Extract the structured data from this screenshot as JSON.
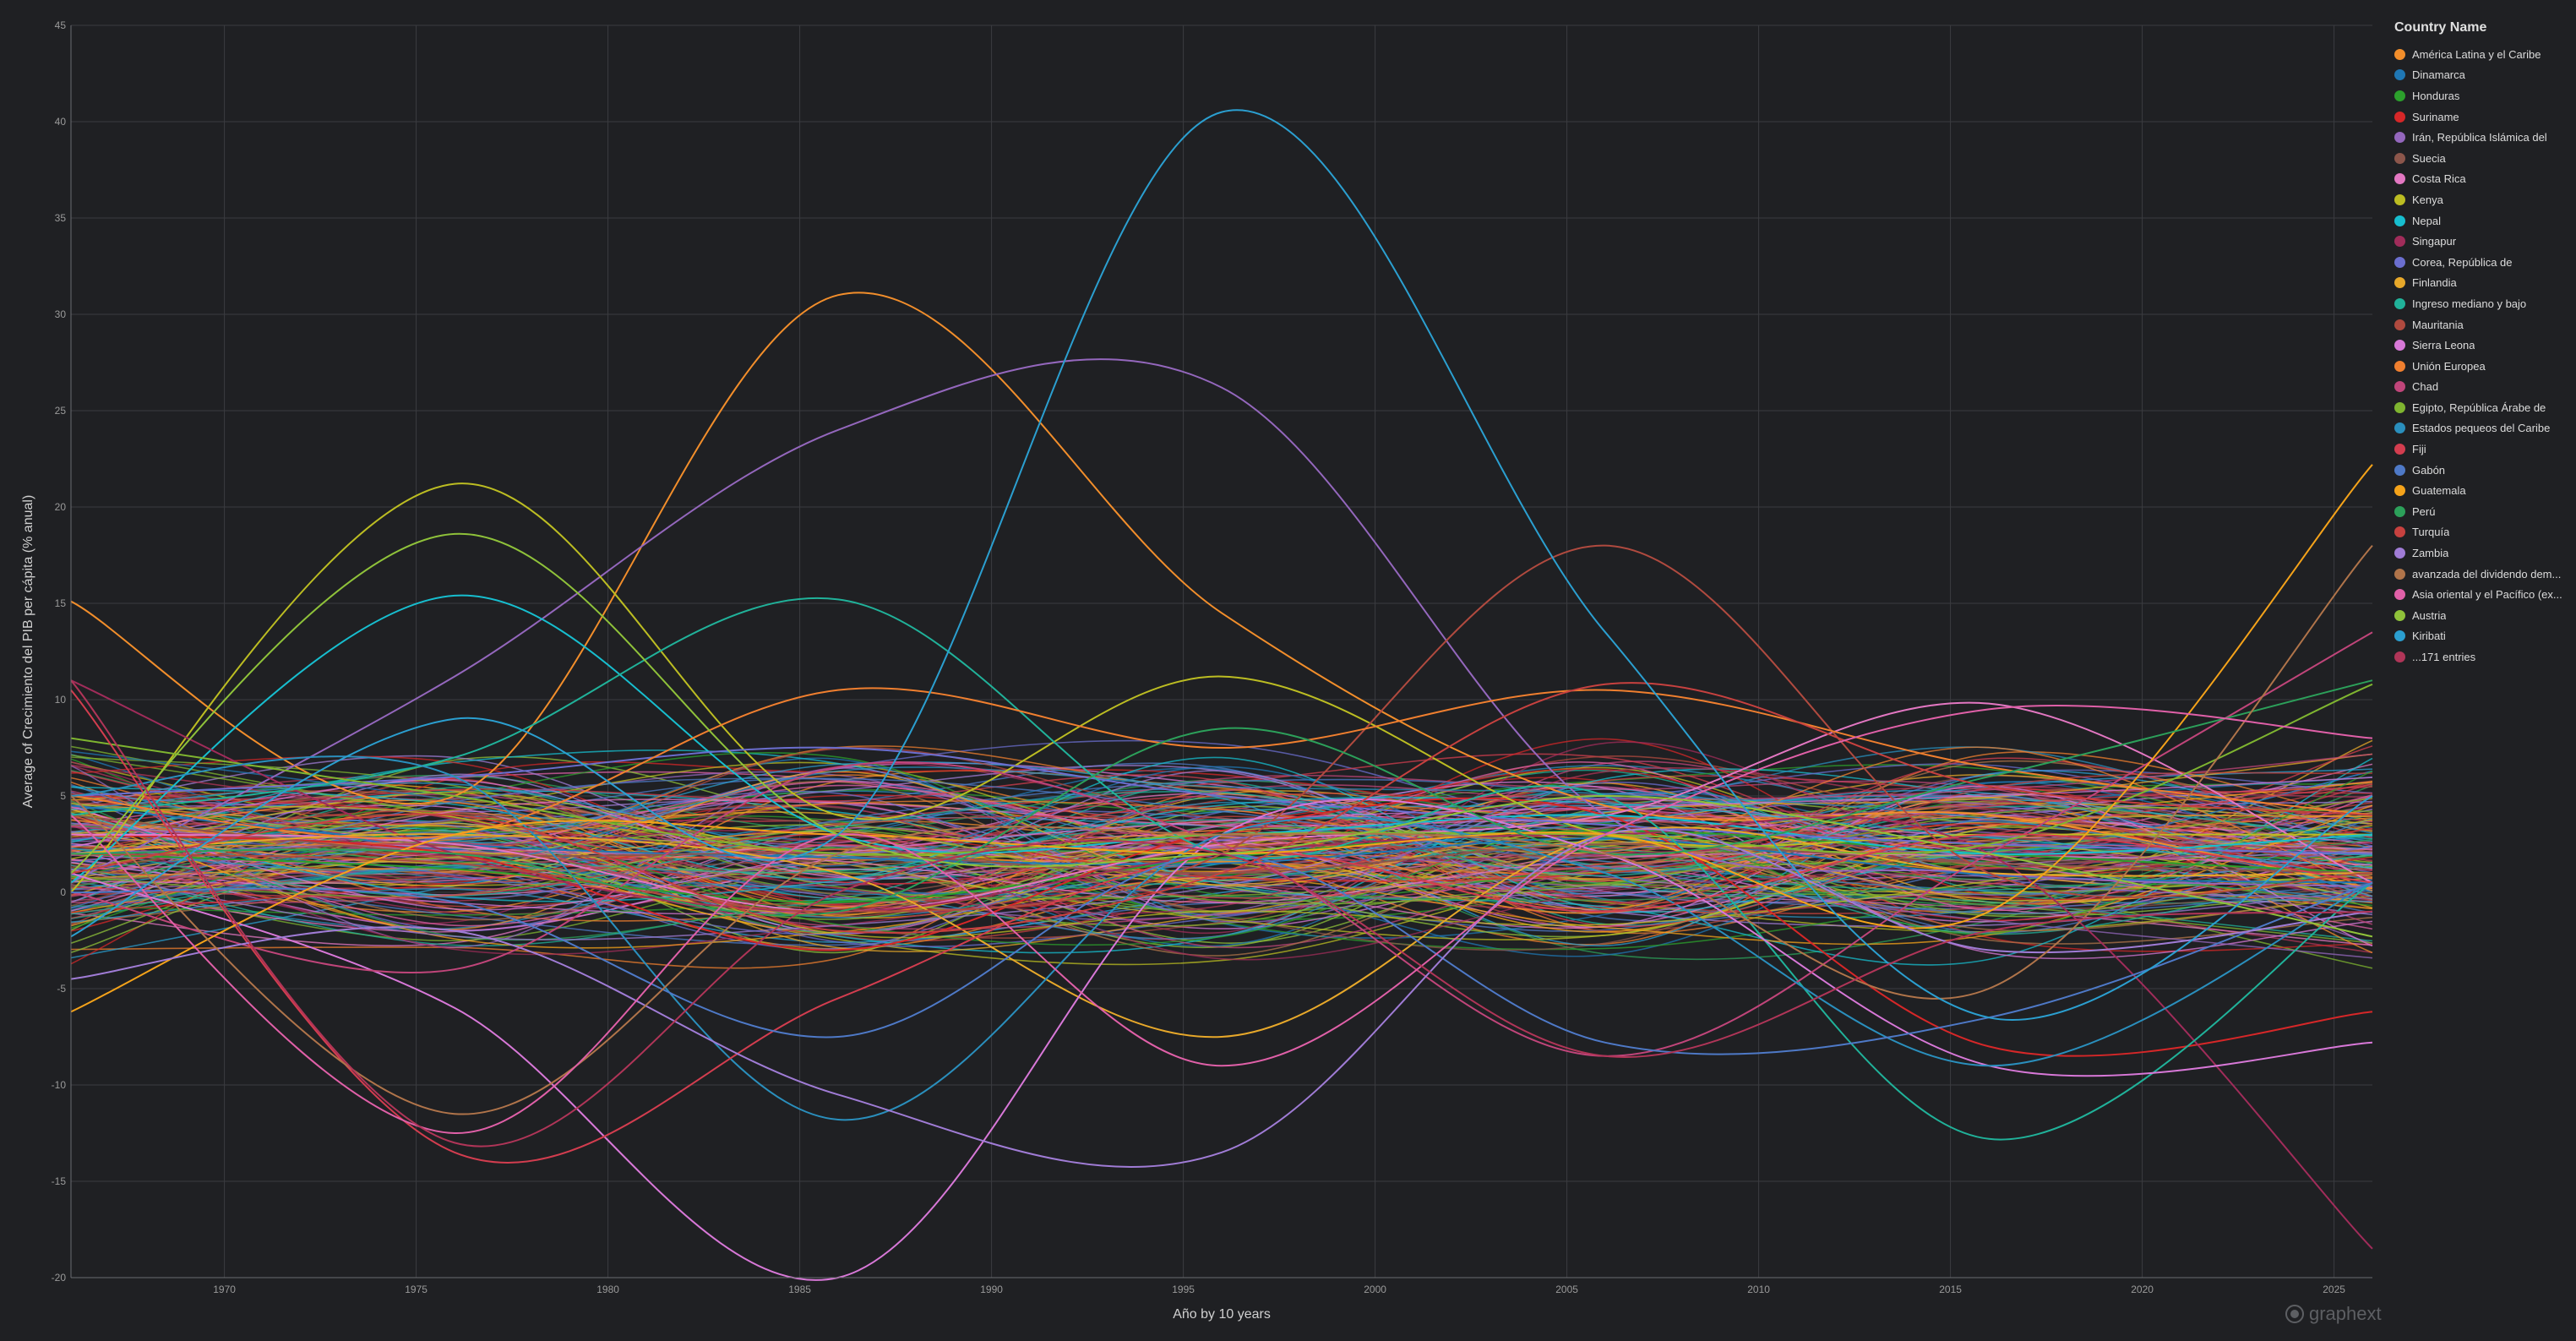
{
  "chart_data": {
    "type": "line",
    "title": "",
    "xlabel": "Año by 10 years",
    "ylabel": "Average of Crecimiento del PIB per cápita (% anual)",
    "xlim": [
      1966,
      2026
    ],
    "ylim": [
      -20,
      45
    ],
    "x_ticks": [
      1970,
      1975,
      1980,
      1985,
      1990,
      1995,
      2000,
      2005,
      2010,
      2015,
      2020,
      2025
    ],
    "y_ticks": [
      -20,
      -15,
      -10,
      -5,
      0,
      5,
      10,
      15,
      20,
      25,
      30,
      35,
      40,
      45
    ],
    "grid": true,
    "legend_position": "right",
    "x": [
      1966,
      1976,
      1986,
      1996,
      2006,
      2016,
      2026
    ],
    "series": [
      {
        "name": "América Latina y el Caribe",
        "color": "#f28e2b",
        "values": [
          15.1,
          5.0,
          31.0,
          14.5,
          4.5,
          4.0,
          0.2
        ]
      },
      {
        "name": "Dinamarca",
        "color": "#1f77b4",
        "values": [
          4.5,
          2.5,
          1.8,
          1.5,
          2.8,
          0.9,
          0.5
        ]
      },
      {
        "name": "Honduras",
        "color": "#2ca02c",
        "values": [
          2.0,
          1.2,
          -0.5,
          1.8,
          3.2,
          2.0,
          1.0
        ]
      },
      {
        "name": "Suriname",
        "color": "#d62728",
        "values": [
          3.0,
          2.0,
          -3.0,
          3.2,
          4.0,
          -8.0,
          -6.2
        ]
      },
      {
        "name": "Irán, República Islámica del",
        "color": "#9467bd",
        "values": [
          0.5,
          11.2,
          24.0,
          26.2,
          4.0,
          1.0,
          0.3
        ]
      },
      {
        "name": "Suecia",
        "color": "#8c564b",
        "values": [
          4.0,
          2.0,
          2.0,
          1.0,
          2.5,
          1.5,
          1.0
        ]
      },
      {
        "name": "Costa Rica",
        "color": "#e377c2",
        "values": [
          3.0,
          2.5,
          -1.0,
          2.5,
          4.0,
          9.8,
          0.5
        ]
      },
      {
        "name": "Kenya",
        "color": "#bcbd22",
        "values": [
          0.0,
          21.2,
          4.0,
          11.2,
          3.0,
          3.0,
          3.0
        ]
      },
      {
        "name": "Nepal",
        "color": "#17becf",
        "values": [
          0.5,
          15.4,
          3.0,
          3.0,
          4.0,
          2.0,
          3.0
        ]
      },
      {
        "name": "Singapur",
        "color": "#a02c5a",
        "values": [
          11.0,
          2.0,
          -1.0,
          2.0,
          3.0,
          2.0,
          -18.5
        ]
      },
      {
        "name": "Corea, República de",
        "color": "#6b6ecf",
        "values": [
          5.0,
          6.0,
          7.5,
          5.0,
          3.5,
          2.5,
          2.0
        ]
      },
      {
        "name": "Finlandia",
        "color": "#e7a82a",
        "values": [
          2.0,
          3.0,
          1.0,
          -7.5,
          3.0,
          1.0,
          1.0
        ]
      },
      {
        "name": "Ingreso mediano y bajo",
        "color": "#20b29a",
        "values": [
          4.0,
          7.0,
          15.2,
          2.0,
          5.0,
          -12.8,
          0.5
        ]
      },
      {
        "name": "Mauritania",
        "color": "#b04a3f",
        "values": [
          2.0,
          1.5,
          -1.0,
          2.0,
          18.0,
          1.0,
          1.0
        ]
      },
      {
        "name": "Sierra Leona",
        "color": "#d878d8",
        "values": [
          1.0,
          -6.0,
          -20.0,
          3.0,
          2.0,
          -9.0,
          -7.8
        ]
      },
      {
        "name": "Unión Europea",
        "color": "#f07f2f",
        "values": [
          5.0,
          3.0,
          10.5,
          7.5,
          10.5,
          6.5,
          4.0
        ]
      },
      {
        "name": "Chad",
        "color": "#c0457a",
        "values": [
          0.0,
          -4.0,
          6.5,
          2.5,
          -8.5,
          2.0,
          13.5
        ]
      },
      {
        "name": "Egipto, República Árabe de",
        "color": "#7fb530",
        "values": [
          8.0,
          5.0,
          2.0,
          3.0,
          3.0,
          2.5,
          10.8
        ]
      },
      {
        "name": "Estados pequeos del Caribe",
        "color": "#2a8fbd",
        "values": [
          5.0,
          6.0,
          -11.8,
          3.0,
          1.0,
          -9.0,
          0.5
        ]
      },
      {
        "name": "Fiji",
        "color": "#d33d4f",
        "values": [
          10.5,
          -13.5,
          -5.5,
          2.0,
          -1.0,
          3.0,
          0.5
        ]
      },
      {
        "name": "Gabón",
        "color": "#4e79c7",
        "values": [
          0.0,
          -0.5,
          -7.5,
          2.0,
          -7.8,
          -6.5,
          0.5
        ]
      },
      {
        "name": "Guatemala",
        "color": "#f5a31a",
        "values": [
          -6.2,
          3.0,
          3.0,
          2.0,
          3.0,
          -1.0,
          22.2
        ]
      },
      {
        "name": "Perú",
        "color": "#2ca05a",
        "values": [
          2.0,
          2.0,
          -1.0,
          8.5,
          2.0,
          6.0,
          11.0
        ]
      },
      {
        "name": "Turquía",
        "color": "#c7413f",
        "values": [
          1.0,
          4.0,
          -2.0,
          1.0,
          10.8,
          5.5,
          4.0
        ]
      },
      {
        "name": "Zambia",
        "color": "#a07cd6",
        "values": [
          -4.5,
          -2.0,
          -10.5,
          -13.5,
          3.0,
          -3.0,
          -1.0
        ]
      },
      {
        "name": "avanzada del dividendo dem...",
        "color": "#b0744a",
        "values": [
          5.0,
          -11.5,
          2.0,
          3.0,
          2.0,
          -5.0,
          18.0
        ]
      },
      {
        "name": "Asia oriental y el Pacífico (ex...",
        "color": "#e060a8",
        "values": [
          4.0,
          -12.5,
          3.0,
          -9.0,
          3.0,
          9.5,
          8.0
        ]
      },
      {
        "name": "Austria",
        "color": "#8fc23a",
        "values": [
          1.0,
          18.6,
          3.0,
          2.0,
          5.0,
          2.0,
          -2.3
        ]
      },
      {
        "name": "Kiribati",
        "color": "#2b9fd0",
        "values": [
          -2.3,
          9.0,
          3.0,
          40.5,
          13.5,
          -6.5,
          5.0
        ]
      },
      {
        "name": "...171 entries",
        "color": "#b03558",
        "values": [
          11.0,
          -13.0,
          0.0,
          2.0,
          -8.5,
          -2.0,
          -1.0
        ]
      }
    ]
  },
  "legend": {
    "title": "Country Name"
  },
  "watermark": {
    "text": "graphext"
  }
}
